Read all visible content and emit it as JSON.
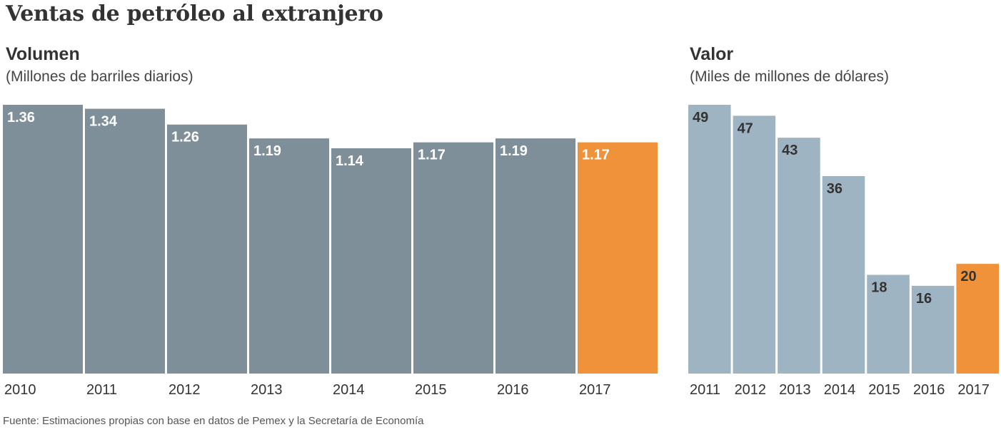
{
  "title": "Ventas de petróleo al extranjero",
  "source": "Fuente: Estimaciones propias con base en datos de Pemex y la Secretaría de Economía",
  "colors": {
    "volume_bar": "#7f8f99",
    "value_bar": "#9fb4c2",
    "highlight": "#f0923a",
    "text": "#333333"
  },
  "chart_data": [
    {
      "type": "bar",
      "title": "Volumen",
      "subtitle": "(Millones de barriles diarios)",
      "categories": [
        "2010",
        "2011",
        "2012",
        "2013",
        "2014",
        "2015",
        "2016",
        "2017"
      ],
      "values": [
        1.36,
        1.34,
        1.26,
        1.19,
        1.14,
        1.17,
        1.19,
        1.17
      ],
      "labels": [
        "1.36",
        "1.34",
        "1.26",
        "1.19",
        "1.14",
        "1.17",
        "1.19",
        "1.17"
      ],
      "highlight_index": 7,
      "ylim": [
        0,
        1.36
      ],
      "grid": false
    },
    {
      "type": "bar",
      "title": "Valor",
      "subtitle": "(Miles de millones de dólares)",
      "categories": [
        "2011",
        "2012",
        "2013",
        "2014",
        "2015",
        "2016",
        "2017"
      ],
      "values": [
        49,
        47,
        43,
        36,
        18,
        16,
        20
      ],
      "labels": [
        "49",
        "47",
        "43",
        "36",
        "18",
        "16",
        "20"
      ],
      "highlight_index": 6,
      "ylim": [
        0,
        49
      ],
      "grid": false
    }
  ]
}
